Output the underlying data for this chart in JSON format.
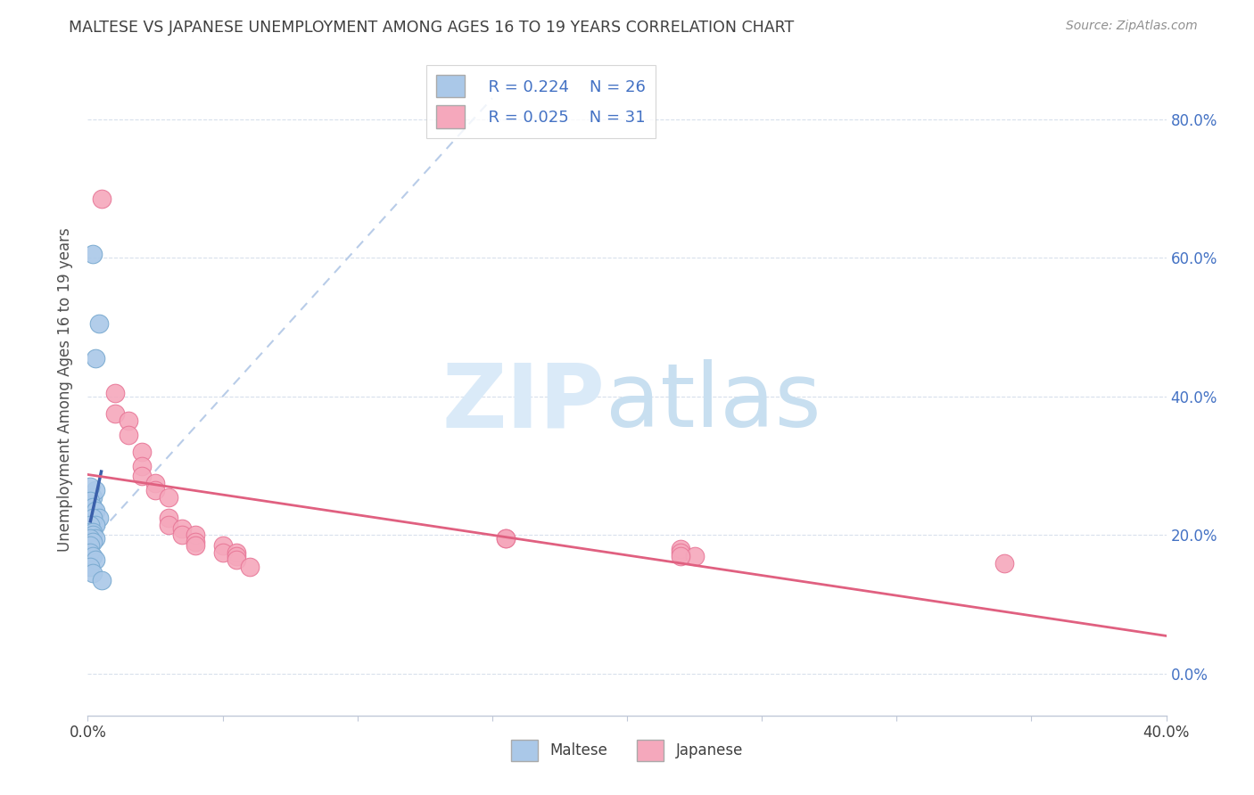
{
  "title": "MALTESE VS JAPANESE UNEMPLOYMENT AMONG AGES 16 TO 19 YEARS CORRELATION CHART",
  "source": "Source: ZipAtlas.com",
  "ylabel_label": "Unemployment Among Ages 16 to 19 years",
  "xlim": [
    0.0,
    0.4
  ],
  "ylim": [
    -0.06,
    0.88
  ],
  "legend_R": [
    "R = 0.224",
    "R = 0.025"
  ],
  "legend_N": [
    "N = 26",
    "N = 31"
  ],
  "maltese_color": "#aac8e8",
  "japanese_color": "#f5a8bc",
  "maltese_edge": "#7aaad0",
  "japanese_edge": "#e87898",
  "trend_blue_color": "#3a5faa",
  "trend_pink_color": "#e06080",
  "diagonal_color": "#b8cce8",
  "title_color": "#404040",
  "source_color": "#909090",
  "axis_label_color": "#4472c4",
  "grid_color": "#d8e0ec",
  "bg_color": "#ffffff",
  "maltese_x": [
    0.002,
    0.004,
    0.003,
    0.002,
    0.003,
    0.001,
    0.001,
    0.002,
    0.003,
    0.004,
    0.002,
    0.003,
    0.001,
    0.001,
    0.002,
    0.002,
    0.003,
    0.001,
    0.002,
    0.001,
    0.001,
    0.002,
    0.003,
    0.001,
    0.002,
    0.005
  ],
  "maltese_y": [
    0.605,
    0.505,
    0.455,
    0.255,
    0.265,
    0.27,
    0.25,
    0.24,
    0.235,
    0.225,
    0.225,
    0.215,
    0.215,
    0.205,
    0.205,
    0.2,
    0.195,
    0.195,
    0.19,
    0.185,
    0.175,
    0.17,
    0.165,
    0.155,
    0.145,
    0.135
  ],
  "japanese_x": [
    0.005,
    0.01,
    0.01,
    0.015,
    0.015,
    0.02,
    0.02,
    0.02,
    0.025,
    0.025,
    0.03,
    0.03,
    0.03,
    0.035,
    0.035,
    0.04,
    0.04,
    0.04,
    0.05,
    0.05,
    0.055,
    0.055,
    0.055,
    0.06,
    0.155,
    0.155,
    0.22,
    0.22,
    0.225,
    0.34,
    0.22
  ],
  "japanese_y": [
    0.685,
    0.405,
    0.375,
    0.365,
    0.345,
    0.32,
    0.3,
    0.285,
    0.275,
    0.265,
    0.255,
    0.225,
    0.215,
    0.21,
    0.2,
    0.2,
    0.19,
    0.185,
    0.185,
    0.175,
    0.175,
    0.17,
    0.165,
    0.155,
    0.195,
    0.195,
    0.18,
    0.175,
    0.17,
    0.16,
    0.17
  ]
}
